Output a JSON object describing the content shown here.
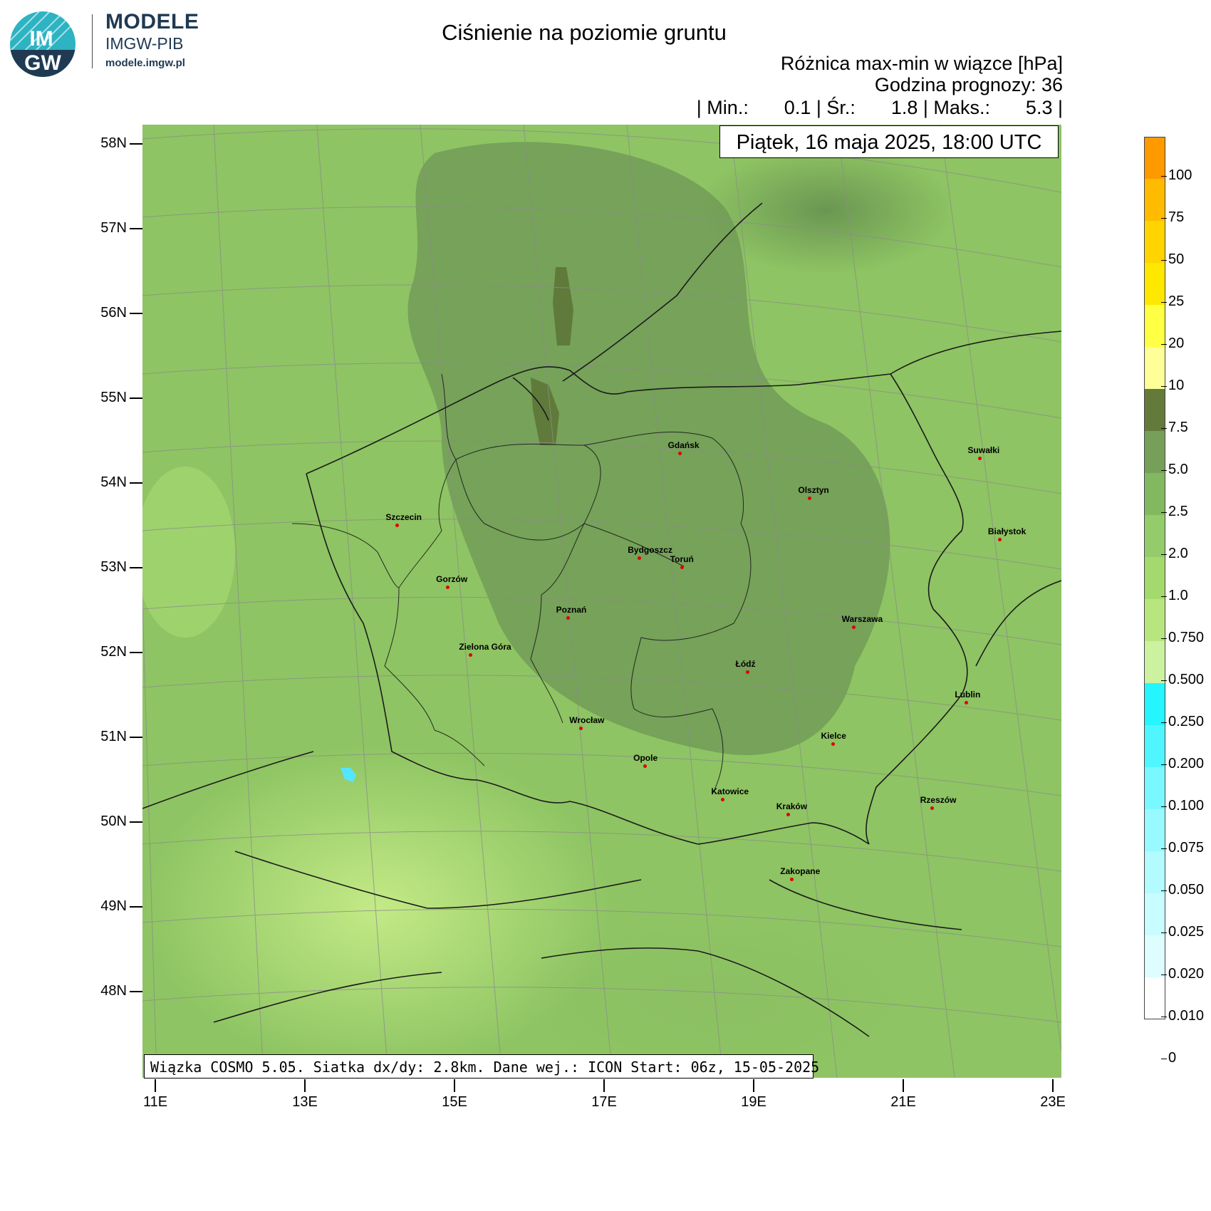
{
  "brand": {
    "logo_text_top": "IM",
    "logo_text_bottom": "GW",
    "title": "MODELE",
    "subtitle": "IMGW-PIB",
    "url": "modele.imgw.pl"
  },
  "header": {
    "title": "Ciśnienie na poziomie gruntu",
    "subtitle": "Różnica max-min w wiązce [hPa]",
    "forecast_hour": "Godzina prognozy: 36",
    "stats": {
      "min_label": "| Min.:",
      "min_value": "0.1",
      "avg_label": "| Śr.:",
      "avg_value": "1.8",
      "max_label": "| Maks.:",
      "max_value": "5.3",
      "end": "|"
    }
  },
  "map": {
    "date": "Piątek, 16 maja 2025, 18:00 UTC",
    "footer": "Wiązka COSMO 5.05. Siatka dx/dy: 2.8km. Dane wej.: ICON Start: 06z, 15-05-2025",
    "lat_labels": [
      "58N",
      "57N",
      "56N",
      "55N",
      "54N",
      "53N",
      "52N",
      "51N",
      "50N",
      "49N",
      "48N"
    ],
    "lon_labels": [
      "11E",
      "13E",
      "15E",
      "17E",
      "19E",
      "21E",
      "23E"
    ],
    "cities": [
      {
        "name": "Gdańsk",
        "lon": 18.65,
        "lat": 54.35
      },
      {
        "name": "Suwałki",
        "lon": 22.93,
        "lat": 54.1
      },
      {
        "name": "Olsztyn",
        "lon": 20.48,
        "lat": 53.78
      },
      {
        "name": "Białystok",
        "lon": 23.16,
        "lat": 53.13
      },
      {
        "name": "Szczecin",
        "lon": 14.55,
        "lat": 53.43
      },
      {
        "name": "Bydgoszcz",
        "lon": 18.0,
        "lat": 53.12
      },
      {
        "name": "Toruń",
        "lon": 18.6,
        "lat": 53.01
      },
      {
        "name": "Gorzów",
        "lon": 15.23,
        "lat": 52.73
      },
      {
        "name": "Poznań",
        "lon": 16.93,
        "lat": 52.41
      },
      {
        "name": "Warszawa",
        "lon": 21.01,
        "lat": 52.23
      },
      {
        "name": "Zielona Góra",
        "lon": 15.51,
        "lat": 51.94
      },
      {
        "name": "Łódź",
        "lon": 19.46,
        "lat": 51.76
      },
      {
        "name": "Lublin",
        "lon": 22.57,
        "lat": 51.25
      },
      {
        "name": "Wrocław",
        "lon": 17.04,
        "lat": 51.11
      },
      {
        "name": "Kielce",
        "lon": 20.63,
        "lat": 50.87
      },
      {
        "name": "Opole",
        "lon": 17.93,
        "lat": 50.67
      },
      {
        "name": "Rzeszów",
        "lon": 22.0,
        "lat": 50.04
      },
      {
        "name": "Katowice",
        "lon": 19.02,
        "lat": 50.26
      },
      {
        "name": "Kraków",
        "lon": 19.94,
        "lat": 50.06
      },
      {
        "name": "Zakopane",
        "lon": 19.95,
        "lat": 49.3
      }
    ]
  },
  "colorbar": {
    "labels": [
      "100",
      "75",
      "50",
      "25",
      "20",
      "10",
      "7.5",
      "5.0",
      "2.5",
      "2.0",
      "1.0",
      "0.750",
      "0.500",
      "0.250",
      "0.200",
      "0.100",
      "0.075",
      "0.050",
      "0.025",
      "0.020",
      "0.010",
      "0"
    ],
    "colors": [
      "#ff9900",
      "#ffbb00",
      "#ffd400",
      "#ffe800",
      "#ffff44",
      "#ffff99",
      "#647a3a",
      "#76a05a",
      "#82b860",
      "#94cc6c",
      "#a4d96e",
      "#b8e67e",
      "#ccf2a0",
      "#24f5ff",
      "#4ff6ff",
      "#7af8ff",
      "#98f9ff",
      "#b3fbff",
      "#c9fcff",
      "#ddfdff",
      "#ffffff"
    ]
  }
}
